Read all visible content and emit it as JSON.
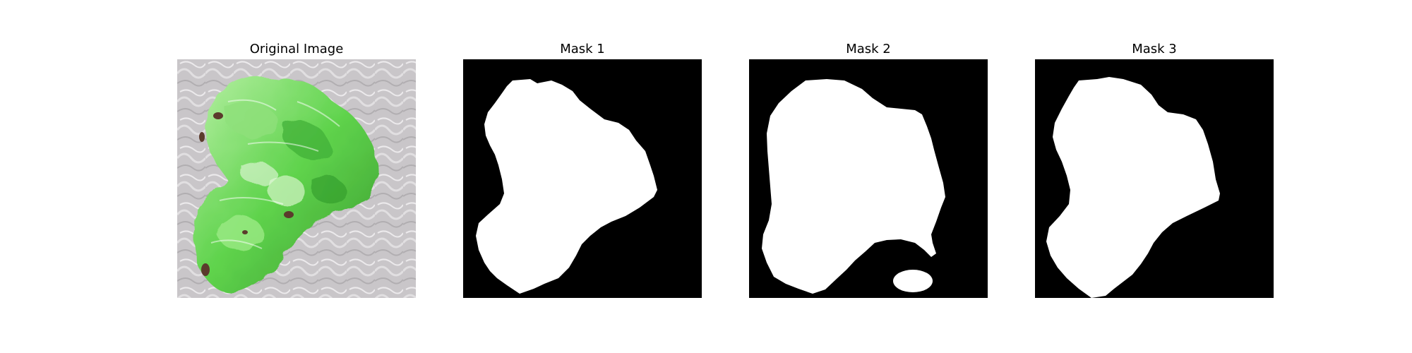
{
  "figure": {
    "panels": [
      {
        "title": "Original Image",
        "content": "photo"
      },
      {
        "title": "Mask 1",
        "content": "binary-mask"
      },
      {
        "title": "Mask 2",
        "content": "binary-mask"
      },
      {
        "title": "Mask 3",
        "content": "binary-mask"
      }
    ],
    "colors": {
      "mask_background": "#000000",
      "mask_foreground": "#ffffff",
      "photo_background": "#c9c6c9",
      "leaf_green": "#5fd34c",
      "leaf_dark": "#3a9a2e",
      "leaf_light": "#b8f0a5",
      "spot_brown": "#5b3b2c"
    }
  }
}
